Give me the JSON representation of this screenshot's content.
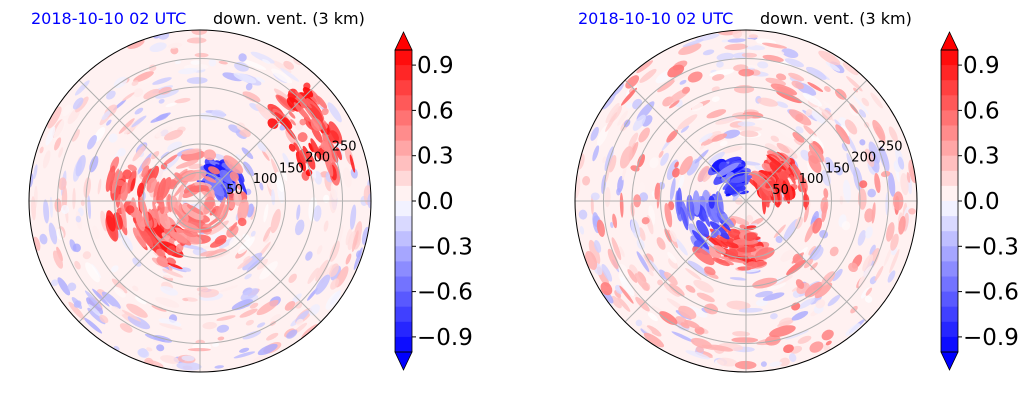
{
  "chart_data": [
    {
      "type": "heatmap",
      "projection": "polar",
      "title_time": "2018-10-10 02 UTC",
      "title_field": "down. vent. (3 km)",
      "radial_ticks": [
        "50",
        "100",
        "150",
        "200",
        "250"
      ],
      "radial_values": [
        50,
        100,
        150,
        200,
        250
      ],
      "rmax": 300,
      "grid": true,
      "colorbar": {
        "ticks": [
          "0.9",
          "0.6",
          "0.3",
          "0.0",
          "−0.3",
          "−0.6",
          "−0.9"
        ],
        "tick_values": [
          0.9,
          0.6,
          0.3,
          0.0,
          -0.3,
          -0.6,
          -0.9
        ],
        "vmin": -1.0,
        "vmax": 1.0,
        "extend": "both",
        "cmap": "bwr"
      }
    },
    {
      "type": "heatmap",
      "projection": "polar",
      "title_time": "2018-10-10 02 UTC",
      "title_field": "down. vent. (3 km)",
      "radial_ticks": [
        "50",
        "100",
        "150",
        "200",
        "250"
      ],
      "radial_values": [
        50,
        100,
        150,
        200,
        250
      ],
      "rmax": 300,
      "grid": true,
      "colorbar": {
        "ticks": [
          "0.9",
          "0.6",
          "0.3",
          "0.0",
          "−0.3",
          "−0.6",
          "−0.9"
        ],
        "tick_values": [
          0.9,
          0.6,
          0.3,
          0.0,
          -0.3,
          -0.6,
          -0.9
        ],
        "vmin": -1.0,
        "vmax": 1.0,
        "extend": "both",
        "cmap": "bwr"
      }
    }
  ],
  "colors": {
    "time_title": "#0000ff",
    "positive": "#ff0000",
    "negative": "#0000ff",
    "neutral": "#ffffff",
    "grid": "#b0b0b0"
  }
}
